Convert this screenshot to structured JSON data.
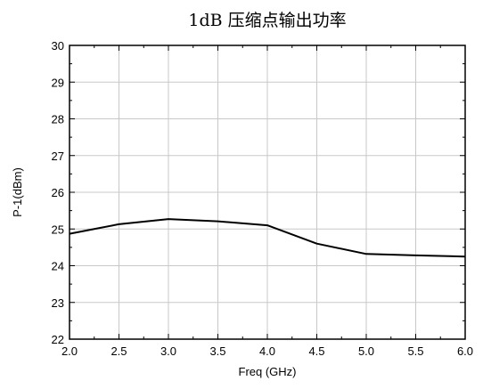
{
  "chart_data": {
    "type": "line",
    "title": "1dB 压缩点输出功率",
    "xlabel": "Freq (GHz)",
    "ylabel": "P-1(dBm)",
    "xlim": [
      2.0,
      6.0
    ],
    "ylim": [
      22,
      30
    ],
    "x_ticks": [
      "2.0",
      "2.5",
      "3.0",
      "3.5",
      "4.0",
      "4.5",
      "5.0",
      "5.5",
      "6.0"
    ],
    "y_ticks": [
      "22",
      "23",
      "24",
      "25",
      "26",
      "27",
      "28",
      "29",
      "30"
    ],
    "grid": true,
    "series": [
      {
        "color": "#000000",
        "x": [
          2.0,
          2.5,
          3.0,
          3.5,
          4.0,
          4.5,
          5.0,
          5.5,
          6.0
        ],
        "y": [
          24.87,
          25.13,
          25.27,
          25.21,
          25.1,
          24.6,
          24.32,
          24.28,
          24.25
        ]
      }
    ]
  }
}
